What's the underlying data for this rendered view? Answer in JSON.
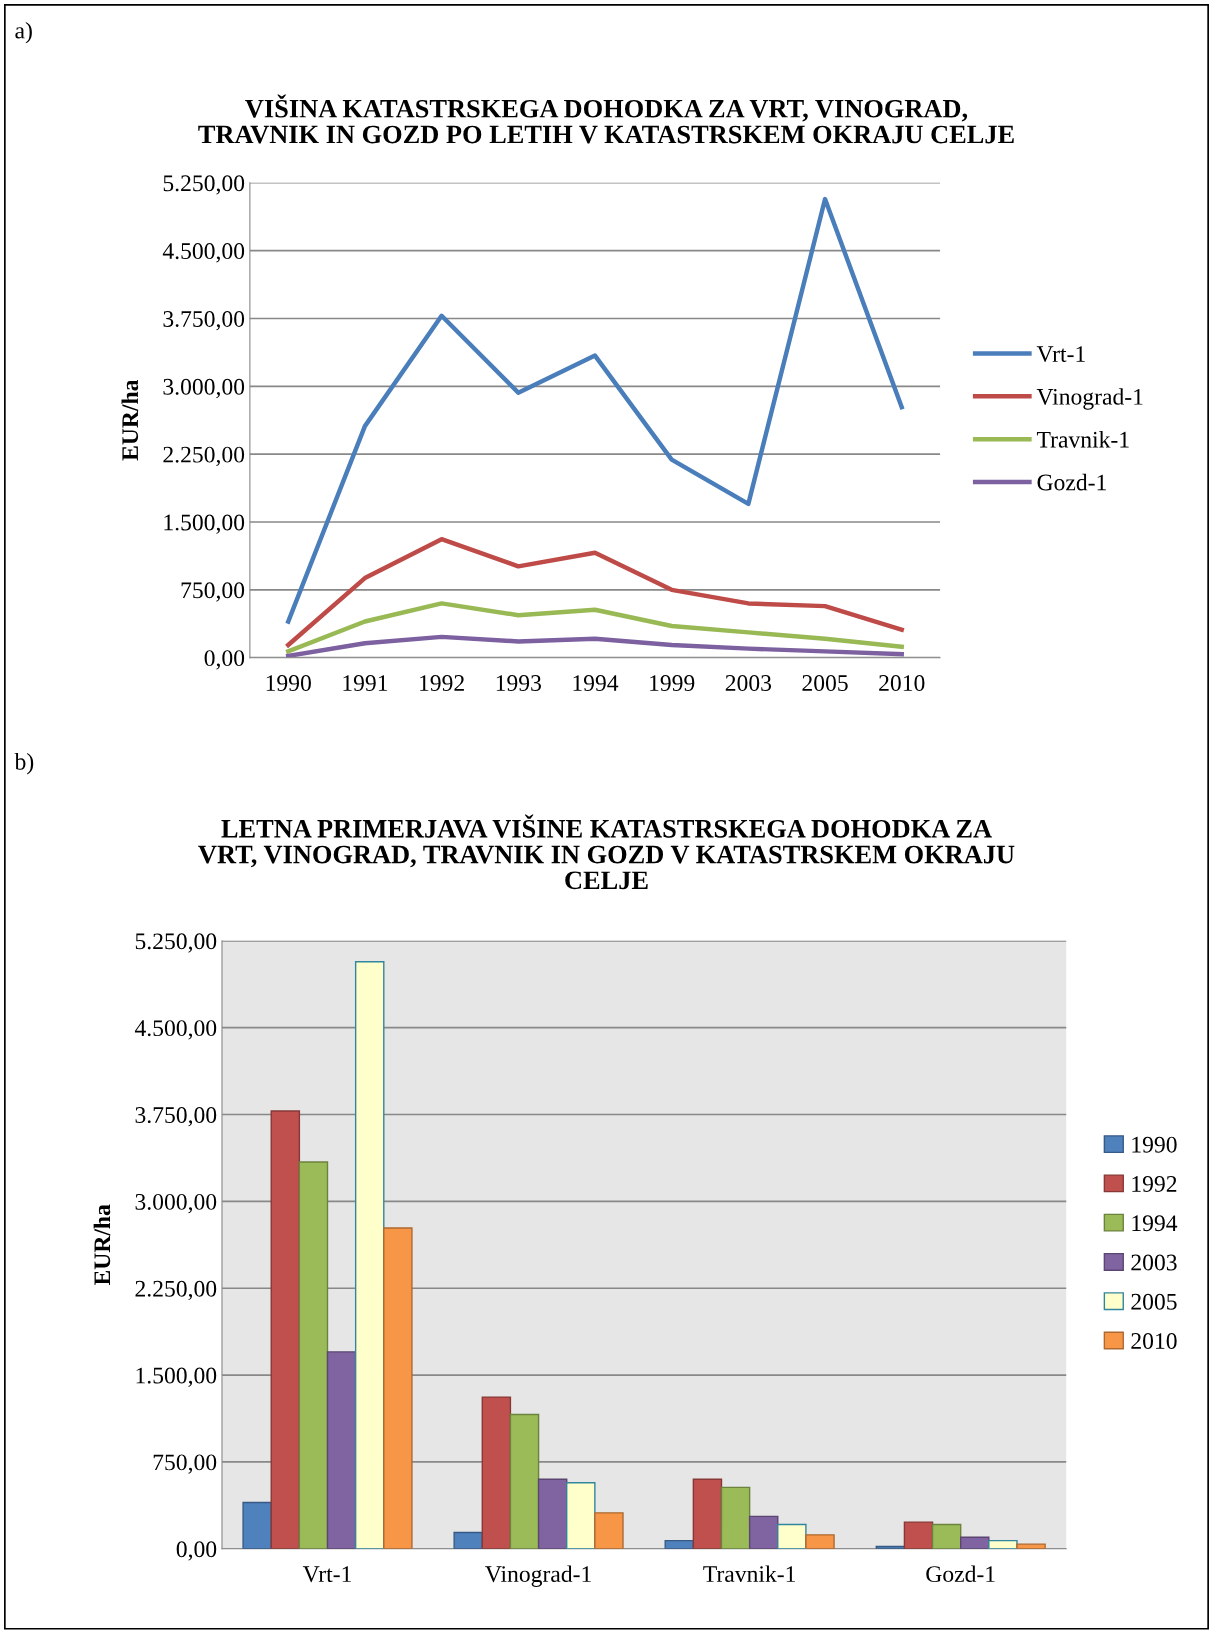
{
  "chart_data": [
    {
      "type": "line",
      "title": "VIŠINA KATASTRSKEGA DOHODKA ZA VRT, VINOGRAD,\nTRAVNIK IN GOZD PO LETIH V KATASTRSKEM OKRAJU CELJE",
      "ylabel": "EUR/ha",
      "annotations": [
        "a)"
      ],
      "categories": [
        "1990",
        "1991",
        "1992",
        "1993",
        "1994",
        "1999",
        "2003",
        "2005",
        "2010"
      ],
      "series": [
        {
          "name": "Vrt-1",
          "color": "#4a7ebb",
          "values": [
            400,
            2560,
            3780,
            2930,
            3340,
            2190,
            1700,
            5070,
            2770
          ]
        },
        {
          "name": "Vinograd-1",
          "color": "#be4b48",
          "values": [
            140,
            880,
            1310,
            1010,
            1160,
            750,
            600,
            570,
            310
          ]
        },
        {
          "name": "Travnik-1",
          "color": "#98b954",
          "values": [
            70,
            400,
            600,
            470,
            530,
            350,
            280,
            210,
            120
          ]
        },
        {
          "name": "Gozd-1",
          "color": "#7d60a0",
          "values": [
            20,
            160,
            230,
            180,
            210,
            140,
            100,
            70,
            40
          ]
        }
      ],
      "ylim": [
        0,
        5250
      ],
      "yticks": [
        {
          "value": 0,
          "label": "0,00"
        },
        {
          "value": 750,
          "label": "750,00"
        },
        {
          "value": 1500,
          "label": "1.500,00"
        },
        {
          "value": 2250,
          "label": "2.250,00"
        },
        {
          "value": 3000,
          "label": "3.000,00"
        },
        {
          "value": 3750,
          "label": "3.750,00"
        },
        {
          "value": 4500,
          "label": "4.500,00"
        },
        {
          "value": 5250,
          "label": "5.250,00"
        }
      ],
      "grid": "y",
      "legend": "right",
      "marker": "none",
      "line_style": "solid"
    },
    {
      "type": "bar",
      "title": "LETNA PRIMERJAVA VIŠINE KATASTRSKEGA DOHODKA ZA\nVRT, VINOGRAD, TRAVNIK IN GOZD V KATASTRSKEM OKRAJU\nCELJE",
      "ylabel": "EUR/ha",
      "annotations": [
        "b)"
      ],
      "categories": [
        "Vrt-1",
        "Vinograd-1",
        "Travnik-1",
        "Gozd-1"
      ],
      "series": [
        {
          "name": "1990",
          "color": "#4f81bd",
          "values": [
            400,
            140,
            70,
            20
          ]
        },
        {
          "name": "1992",
          "color": "#c0504d",
          "values": [
            3780,
            1310,
            600,
            230
          ]
        },
        {
          "name": "1994",
          "color": "#9bbb59",
          "values": [
            3340,
            1160,
            530,
            210
          ]
        },
        {
          "name": "2003",
          "color": "#8064a2",
          "values": [
            1700,
            600,
            280,
            100
          ]
        },
        {
          "name": "2005",
          "color": "#ffffcc",
          "values": [
            5070,
            570,
            210,
            70
          ]
        },
        {
          "name": "2010",
          "color": "#f79646",
          "values": [
            2770,
            310,
            120,
            40
          ]
        }
      ],
      "ylim": [
        0,
        5250
      ],
      "yticks": [
        {
          "value": 0,
          "label": "0,00"
        },
        {
          "value": 750,
          "label": "750,00"
        },
        {
          "value": 1500,
          "label": "1.500,00"
        },
        {
          "value": 2250,
          "label": "2.250,00"
        },
        {
          "value": 3000,
          "label": "3.000,00"
        },
        {
          "value": 3750,
          "label": "3.750,00"
        },
        {
          "value": 4500,
          "label": "4.500,00"
        },
        {
          "value": 5250,
          "label": "5.250,00"
        }
      ],
      "grid": "y",
      "legend": "right"
    }
  ]
}
